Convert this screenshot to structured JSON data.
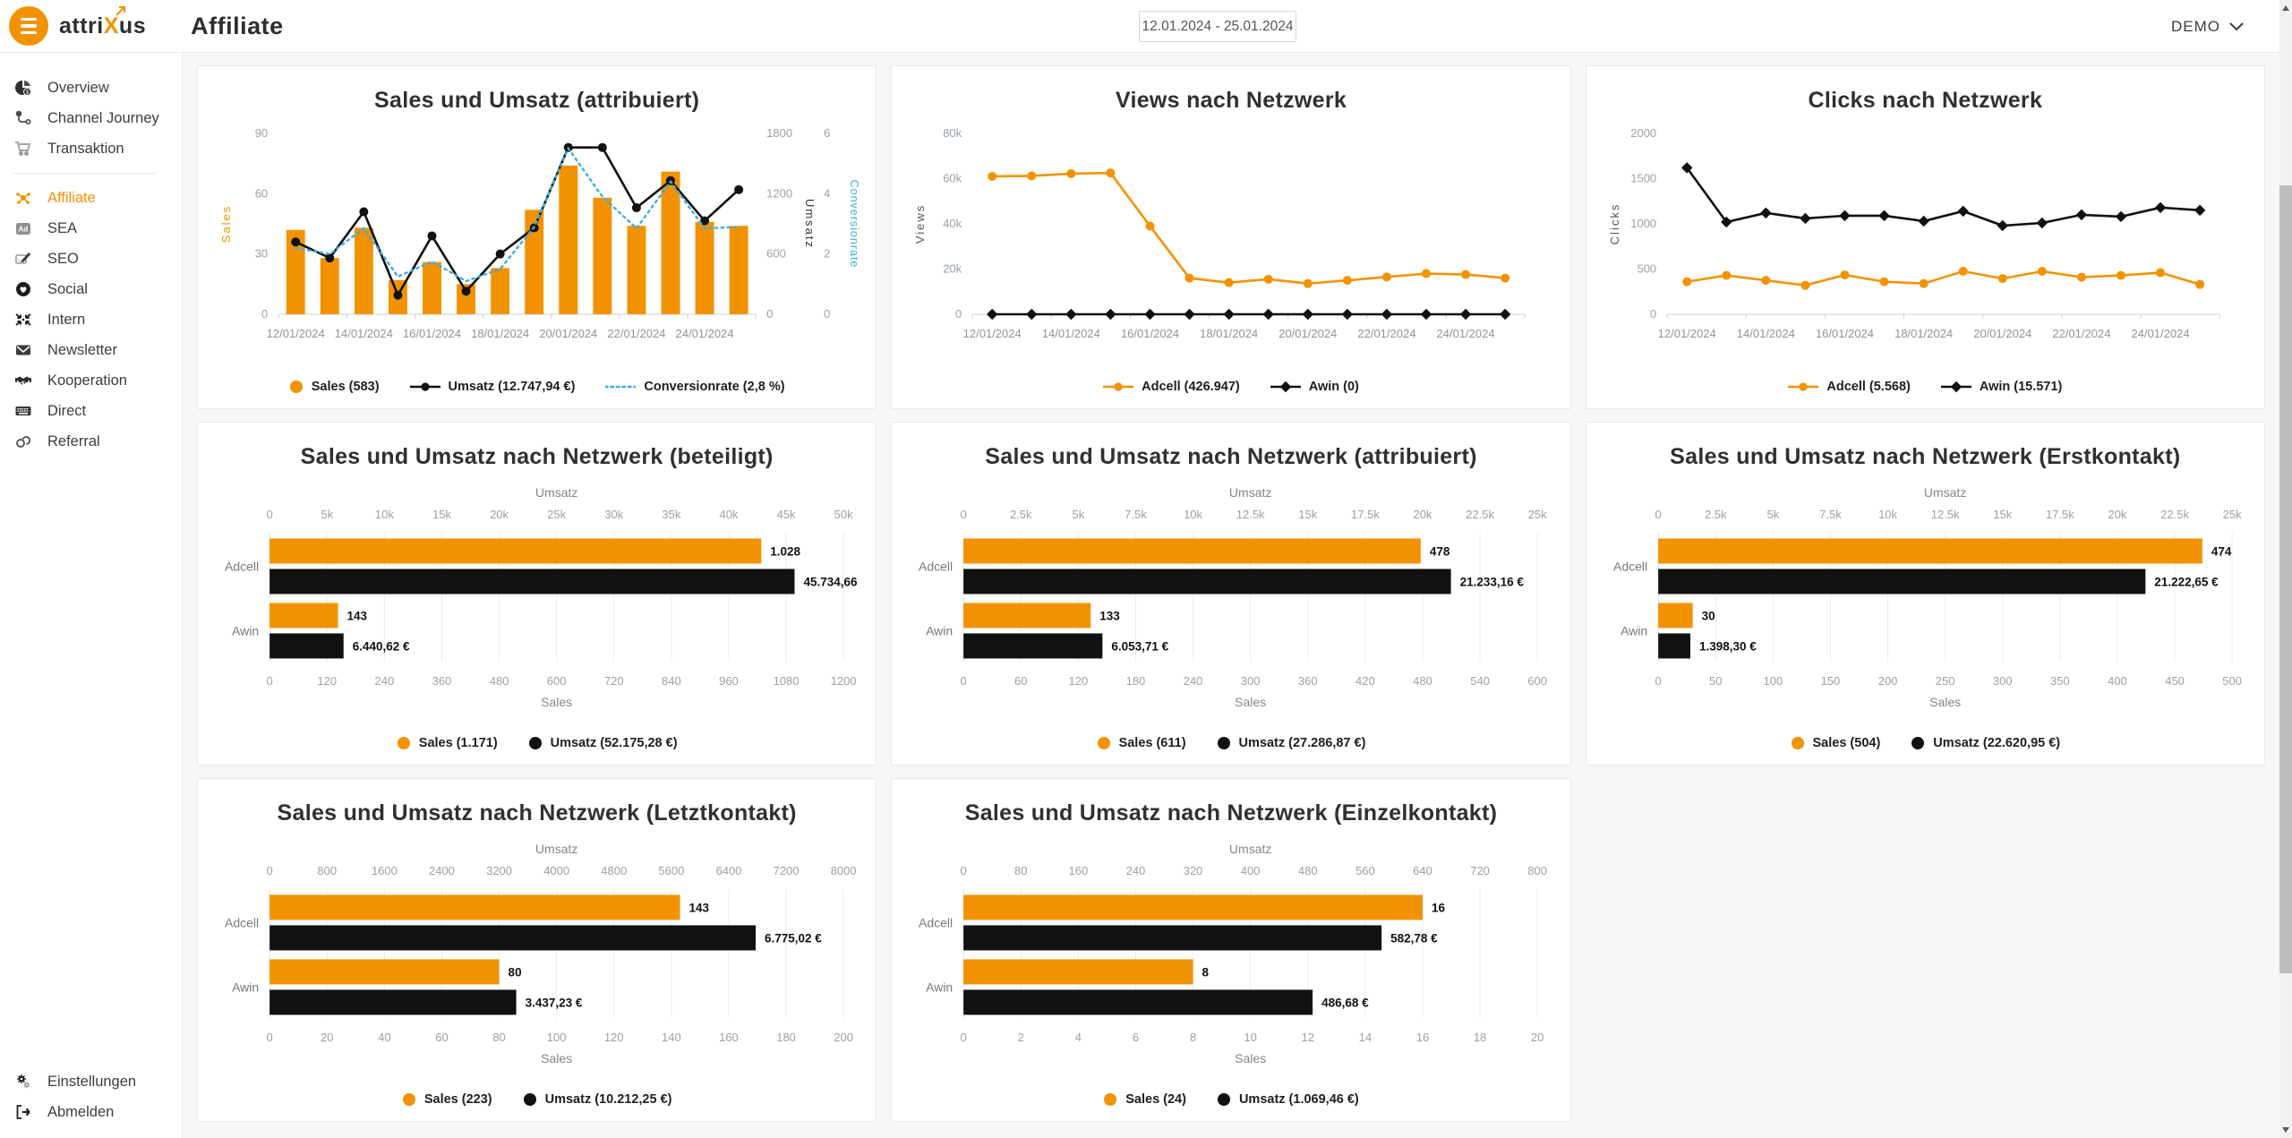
{
  "topbar": {
    "logo_part1": "attri",
    "logo_part2": "X",
    "logo_part3": "us",
    "page_title": "Affiliate",
    "date_range": "12.01.2024 - 25.01.2024",
    "account": "DEMO"
  },
  "sidebar": {
    "items": [
      {
        "label": "Overview",
        "icon": "pie-chart-icon",
        "active": false
      },
      {
        "label": "Channel Journey",
        "icon": "journey-icon",
        "active": false
      },
      {
        "label": "Transaktion",
        "icon": "cart-icon",
        "active": false
      },
      {
        "label": "Affiliate",
        "icon": "network-icon",
        "active": true
      },
      {
        "label": "SEA",
        "icon": "ad-icon",
        "active": false
      },
      {
        "label": "SEO",
        "icon": "pencil-icon",
        "active": false
      },
      {
        "label": "Social",
        "icon": "heart-icon",
        "active": false
      },
      {
        "label": "Intern",
        "icon": "arrows-in-icon",
        "active": false
      },
      {
        "label": "Newsletter",
        "icon": "envelope-icon",
        "active": false
      },
      {
        "label": "Kooperation",
        "icon": "handshake-icon",
        "active": false
      },
      {
        "label": "Direct",
        "icon": "keyboard-icon",
        "active": false
      },
      {
        "label": "Referral",
        "icon": "link-icon",
        "active": false
      }
    ],
    "footer_items": [
      {
        "label": "Einstellungen",
        "icon": "gears-icon"
      },
      {
        "label": "Abmelden",
        "icon": "logout-icon"
      }
    ]
  },
  "colors": {
    "accent_orange": "#F39200",
    "series_black": "#111111",
    "series_blue": "#3FAEE0"
  },
  "chart_data": [
    {
      "type": "combo",
      "title": "Sales und Umsatz (attribuiert)",
      "categories": [
        "12/01/2024",
        "13/01/2024",
        "14/01/2024",
        "15/01/2024",
        "16/01/2024",
        "17/01/2024",
        "18/01/2024",
        "19/01/2024",
        "20/01/2024",
        "21/01/2024",
        "22/01/2024",
        "23/01/2024",
        "24/01/2024",
        "25/01/2024"
      ],
      "x_label_indices": [
        0,
        2,
        4,
        6,
        8,
        10,
        12
      ],
      "x_labels": [
        "12/01/2024",
        "14/01/2024",
        "16/01/2024",
        "18/01/2024",
        "20/01/2024",
        "22/01/2024",
        "24/01/2024"
      ],
      "axes": {
        "left": {
          "title": "Sales",
          "title_color": "#F39200",
          "max": 90,
          "ticks": [
            "0",
            "30",
            "60",
            "90"
          ]
        },
        "right1": {
          "title": "Umsatz",
          "title_color": "#333333",
          "max": 1800,
          "ticks": [
            "0",
            "600",
            "1200",
            "1800"
          ]
        },
        "right2": {
          "title": "Conversionrate",
          "title_color": "#3FAEE0",
          "max": 6,
          "ticks": [
            "0",
            "2",
            "4",
            "6"
          ]
        }
      },
      "series": [
        {
          "name": "Sales",
          "type": "bar",
          "axis": "left",
          "color": "#F39200",
          "values": [
            42,
            28,
            43,
            17,
            26,
            15,
            23,
            52,
            74,
            58,
            44,
            71,
            46,
            44
          ],
          "legend": "Sales (583)",
          "legend_marker": "dot"
        },
        {
          "name": "Umsatz",
          "type": "line",
          "axis": "right1",
          "color": "#111111",
          "marker": "circle",
          "values": [
            720,
            560,
            1020,
            190,
            780,
            230,
            600,
            860,
            1660,
            1660,
            1060,
            1330,
            930,
            1240
          ],
          "legend": "Umsatz (12.747,94 €)",
          "legend_marker": "line-dot"
        },
        {
          "name": "Conversionrate",
          "type": "line",
          "axis": "right2",
          "color": "#3FAEE0",
          "dotted": true,
          "values": [
            2.2,
            2.0,
            2.85,
            1.25,
            1.75,
            1.1,
            1.5,
            2.9,
            5.5,
            3.9,
            2.85,
            4.4,
            2.85,
            2.9
          ],
          "legend": "Conversionrate (2,8 %)",
          "legend_marker": "dotted-line"
        }
      ]
    },
    {
      "type": "line",
      "title": "Views nach Netzwerk",
      "categories": [
        "12/01/2024",
        "13/01/2024",
        "14/01/2024",
        "15/01/2024",
        "16/01/2024",
        "17/01/2024",
        "18/01/2024",
        "19/01/2024",
        "20/01/2024",
        "21/01/2024",
        "22/01/2024",
        "23/01/2024",
        "24/01/2024",
        "25/01/2024"
      ],
      "x_label_indices": [
        0,
        2,
        4,
        6,
        8,
        10,
        12
      ],
      "x_labels": [
        "12/01/2024",
        "14/01/2024",
        "16/01/2024",
        "18/01/2024",
        "20/01/2024",
        "22/01/2024",
        "24/01/2024"
      ],
      "axes": {
        "left": {
          "title": "Views",
          "title_color": "#555555",
          "max": 80000,
          "ticks": [
            "0",
            "20k",
            "40k",
            "60k",
            "80k"
          ]
        }
      },
      "series": [
        {
          "name": "Adcell",
          "type": "line",
          "axis": "left",
          "color": "#F39200",
          "marker": "circle",
          "values": [
            61000,
            61200,
            62200,
            62500,
            39000,
            16000,
            14000,
            15500,
            13600,
            15000,
            16500,
            18000,
            17600,
            16000
          ],
          "legend": "Adcell (426.947)",
          "legend_marker": "line-dot"
        },
        {
          "name": "Awin",
          "type": "line",
          "axis": "left",
          "color": "#111111",
          "marker": "diamond",
          "values": [
            0,
            0,
            0,
            0,
            0,
            0,
            0,
            0,
            0,
            0,
            0,
            0,
            0,
            0
          ],
          "legend": "Awin (0)",
          "legend_marker": "line-diamond"
        }
      ]
    },
    {
      "type": "line",
      "title": "Clicks nach Netzwerk",
      "categories": [
        "12/01/2024",
        "13/01/2024",
        "14/01/2024",
        "15/01/2024",
        "16/01/2024",
        "17/01/2024",
        "18/01/2024",
        "19/01/2024",
        "20/01/2024",
        "21/01/2024",
        "22/01/2024",
        "23/01/2024",
        "24/01/2024",
        "25/01/2024"
      ],
      "x_label_indices": [
        0,
        2,
        4,
        6,
        8,
        10,
        12
      ],
      "x_labels": [
        "12/01/2024",
        "14/01/2024",
        "16/01/2024",
        "18/01/2024",
        "20/01/2024",
        "22/01/2024",
        "24/01/2024"
      ],
      "axes": {
        "left": {
          "title": "Clicks",
          "title_color": "#555555",
          "max": 2000,
          "ticks": [
            "0",
            "500",
            "1000",
            "1500",
            "2000"
          ]
        }
      },
      "series": [
        {
          "name": "Adcell",
          "type": "line",
          "axis": "left",
          "color": "#F39200",
          "marker": "circle",
          "values": [
            360,
            430,
            375,
            320,
            435,
            360,
            340,
            475,
            395,
            475,
            410,
            430,
            460,
            330
          ],
          "legend": "Adcell (5.568)",
          "legend_marker": "line-dot"
        },
        {
          "name": "Awin",
          "type": "line",
          "axis": "left",
          "color": "#111111",
          "marker": "diamond",
          "values": [
            1620,
            1020,
            1120,
            1060,
            1090,
            1090,
            1030,
            1140,
            980,
            1010,
            1100,
            1080,
            1180,
            1150
          ],
          "legend": "Awin (15.571)",
          "legend_marker": "line-diamond"
        }
      ]
    },
    {
      "type": "hbar",
      "title": "Sales und Umsatz nach Netzwerk (beteiligt)",
      "categories": [
        "Adcell",
        "Awin"
      ],
      "top_axis": {
        "title": "Umsatz",
        "max": 50000,
        "ticks": [
          "0",
          "5k",
          "10k",
          "15k",
          "20k",
          "25k",
          "30k",
          "35k",
          "40k",
          "45k",
          "50k"
        ]
      },
      "bottom_axis": {
        "title": "Sales",
        "max": 1200,
        "ticks": [
          "0",
          "120",
          "240",
          "360",
          "480",
          "600",
          "720",
          "840",
          "960",
          "1080",
          "1200"
        ]
      },
      "series": [
        {
          "name": "Sales",
          "axis": "bottom",
          "color": "#F39200",
          "values": [
            1028,
            143
          ],
          "labels": [
            "1.028",
            "143"
          ],
          "legend": "Sales (1.171)",
          "legend_marker": "dot"
        },
        {
          "name": "Umsatz",
          "axis": "top",
          "color": "#111111",
          "values": [
            45734.66,
            6440.62
          ],
          "labels": [
            "45.734,66",
            "6.440,62 €"
          ],
          "legend": "Umsatz (52.175,28 €)",
          "legend_marker": "dot"
        }
      ]
    },
    {
      "type": "hbar",
      "title": "Sales und Umsatz nach Netzwerk (attribuiert)",
      "categories": [
        "Adcell",
        "Awin"
      ],
      "top_axis": {
        "title": "Umsatz",
        "max": 25000,
        "ticks": [
          "0",
          "2.5k",
          "5k",
          "7.5k",
          "10k",
          "12.5k",
          "15k",
          "17.5k",
          "20k",
          "22.5k",
          "25k"
        ]
      },
      "bottom_axis": {
        "title": "Sales",
        "max": 600,
        "ticks": [
          "0",
          "60",
          "120",
          "180",
          "240",
          "300",
          "360",
          "420",
          "480",
          "540",
          "600"
        ]
      },
      "series": [
        {
          "name": "Sales",
          "axis": "bottom",
          "color": "#F39200",
          "values": [
            478,
            133
          ],
          "labels": [
            "478",
            "133"
          ],
          "legend": "Sales (611)",
          "legend_marker": "dot"
        },
        {
          "name": "Umsatz",
          "axis": "top",
          "color": "#111111",
          "values": [
            21233.16,
            6053.71
          ],
          "labels": [
            "21.233,16 €",
            "6.053,71 €"
          ],
          "legend": "Umsatz (27.286,87 €)",
          "legend_marker": "dot"
        }
      ]
    },
    {
      "type": "hbar",
      "title": "Sales und Umsatz nach Netzwerk (Erstkontakt)",
      "categories": [
        "Adcell",
        "Awin"
      ],
      "top_axis": {
        "title": "Umsatz",
        "max": 25000,
        "ticks": [
          "0",
          "2.5k",
          "5k",
          "7.5k",
          "10k",
          "12.5k",
          "15k",
          "17.5k",
          "20k",
          "22.5k",
          "25k"
        ]
      },
      "bottom_axis": {
        "title": "Sales",
        "max": 500,
        "ticks": [
          "0",
          "50",
          "100",
          "150",
          "200",
          "250",
          "300",
          "350",
          "400",
          "450",
          "500"
        ]
      },
      "series": [
        {
          "name": "Sales",
          "axis": "bottom",
          "color": "#F39200",
          "values": [
            474,
            30
          ],
          "labels": [
            "474",
            "30"
          ],
          "legend": "Sales (504)",
          "legend_marker": "dot"
        },
        {
          "name": "Umsatz",
          "axis": "top",
          "color": "#111111",
          "values": [
            21222.65,
            1398.3
          ],
          "labels": [
            "21.222,65 €",
            "1.398,30 €"
          ],
          "legend": "Umsatz (22.620,95 €)",
          "legend_marker": "dot"
        }
      ]
    },
    {
      "type": "hbar",
      "title": "Sales und Umsatz nach Netzwerk (Letztkontakt)",
      "categories": [
        "Adcell",
        "Awin"
      ],
      "top_axis": {
        "title": "Umsatz",
        "max": 8000,
        "ticks": [
          "0",
          "800",
          "1600",
          "2400",
          "3200",
          "4000",
          "4800",
          "5600",
          "6400",
          "7200",
          "8000"
        ]
      },
      "bottom_axis": {
        "title": "Sales",
        "max": 200,
        "ticks": [
          "0",
          "20",
          "40",
          "60",
          "80",
          "100",
          "120",
          "140",
          "160",
          "180",
          "200"
        ]
      },
      "series": [
        {
          "name": "Sales",
          "axis": "bottom",
          "color": "#F39200",
          "values": [
            143,
            80
          ],
          "labels": [
            "143",
            "80"
          ],
          "legend": "Sales (223)",
          "legend_marker": "dot"
        },
        {
          "name": "Umsatz",
          "axis": "top",
          "color": "#111111",
          "values": [
            6775.02,
            3437.23
          ],
          "labels": [
            "6.775,02 €",
            "3.437,23 €"
          ],
          "legend": "Umsatz (10.212,25 €)",
          "legend_marker": "dot"
        }
      ]
    },
    {
      "type": "hbar",
      "title": "Sales und Umsatz nach Netzwerk (Einzelkontakt)",
      "categories": [
        "Adcell",
        "Awin"
      ],
      "top_axis": {
        "title": "Umsatz",
        "max": 800,
        "ticks": [
          "0",
          "80",
          "160",
          "240",
          "320",
          "400",
          "480",
          "560",
          "640",
          "720",
          "800"
        ]
      },
      "bottom_axis": {
        "title": "Sales",
        "max": 20,
        "ticks": [
          "0",
          "2",
          "4",
          "6",
          "8",
          "10",
          "12",
          "14",
          "16",
          "18",
          "20"
        ]
      },
      "series": [
        {
          "name": "Sales",
          "axis": "bottom",
          "color": "#F39200",
          "values": [
            16,
            8
          ],
          "labels": [
            "16",
            "8"
          ],
          "legend": "Sales (24)",
          "legend_marker": "dot"
        },
        {
          "name": "Umsatz",
          "axis": "top",
          "color": "#111111",
          "values": [
            582.78,
            486.68
          ],
          "labels": [
            "582,78 €",
            "486,68 €"
          ],
          "legend": "Umsatz (1.069,46 €)",
          "legend_marker": "dot"
        }
      ]
    }
  ]
}
